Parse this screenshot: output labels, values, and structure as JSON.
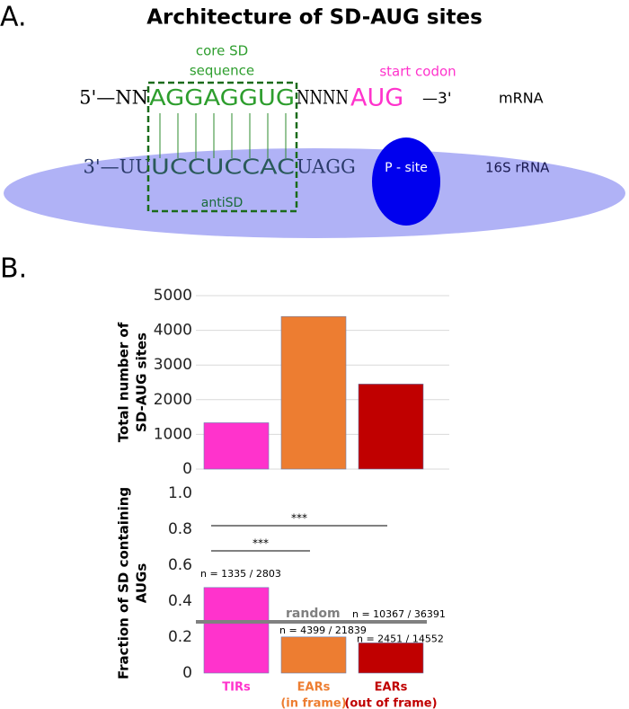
{
  "panel_a": {
    "label": "A.",
    "title": "Architecture of SD-AUG sites",
    "core_sd": [
      "core SD",
      "sequence"
    ],
    "start_codon": "start codon",
    "mrna": {
      "left": "5'—NN",
      "sd": "AGGAGGUG",
      "spacer": "NNNN",
      "aug": "AUG",
      "right": "—3'",
      "name": "mRNA"
    },
    "rrna": {
      "left": "3'—UU",
      "antisd": "UCCUCCAC",
      "rest": "UAGG",
      "p_site": "P - site",
      "name": "16S rRNA"
    },
    "antisd_label": "antiSD"
  },
  "panel_b": {
    "label": "B."
  },
  "chart_data": [
    {
      "type": "bar",
      "ylabel": [
        "Total number of",
        "SD-AUG sites"
      ],
      "values": [
        1335,
        4399,
        2451
      ],
      "colors": [
        "#ff33cc",
        "#ed7d31",
        "#c00000"
      ],
      "ylim": [
        0,
        5000
      ],
      "yticks": [
        0,
        1000,
        2000,
        3000,
        4000,
        5000
      ],
      "grid": true
    },
    {
      "type": "bar",
      "ylabel": [
        "Fraction of SD containing",
        "AUGs"
      ],
      "categories": [
        [
          "TIRs"
        ],
        [
          "EARs",
          "(in frame)"
        ],
        [
          "EARs",
          "(out of frame)"
        ]
      ],
      "values": [
        0.476,
        0.201,
        0.168
      ],
      "colors": [
        "#ff33cc",
        "#ed7d31",
        "#c00000"
      ],
      "bar_notes": [
        "n =  1335 / 2803",
        "n = 4399 / 21839",
        "n = 2451 / 14552"
      ],
      "ylim": [
        0,
        1.0
      ],
      "yticks": [
        0,
        0.2,
        0.4,
        0.6,
        0.8,
        {
          "value": 1.0,
          "label": "1.0"
        }
      ],
      "grid": false,
      "random": {
        "label": "random",
        "value": 0.285,
        "note": "n = 10367 / 36391",
        "color": "#808080"
      },
      "significance": [
        {
          "from": 0,
          "to": 1,
          "y": 0.68,
          "label": "***"
        },
        {
          "from": 0,
          "to": 2,
          "y": 0.82,
          "label": "***"
        }
      ]
    }
  ]
}
